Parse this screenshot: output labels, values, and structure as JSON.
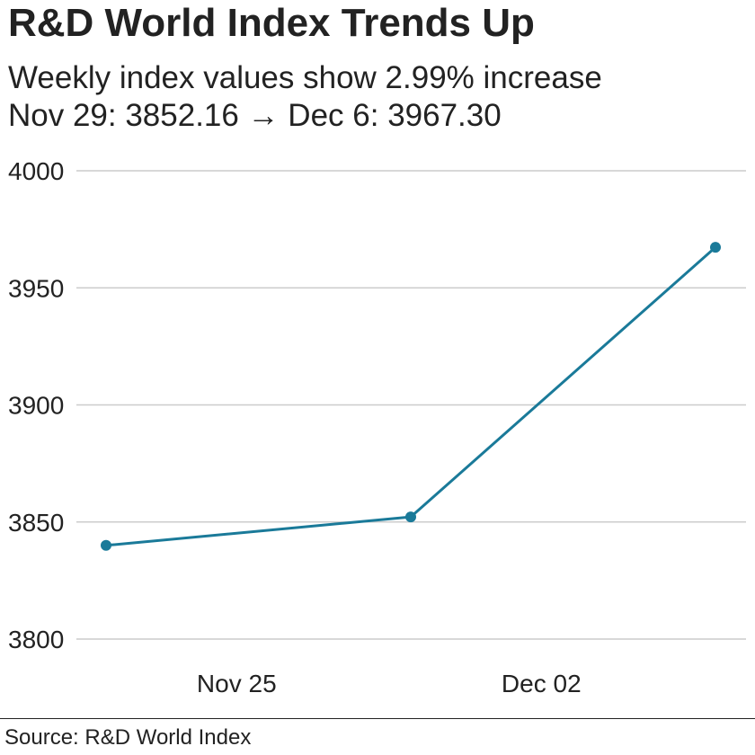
{
  "header": {
    "title": "R&D World Index Trends Up",
    "subtitle_line1": "Weekly index values show 2.99% increase",
    "subtitle_line2": "Nov 29: 3852.16 → Dec 6: 3967.30"
  },
  "footer": {
    "source": "Source: R&D World Index"
  },
  "chart_data": {
    "type": "line",
    "x": [
      "2024-11-22",
      "2024-11-29",
      "2024-12-06"
    ],
    "x_ticks": [
      "Nov 25",
      "Dec 02"
    ],
    "x_tick_positions": [
      "2024-11-25",
      "2024-12-02"
    ],
    "series": [
      {
        "values": [
          3840.0,
          3852.16,
          3967.3
        ],
        "color": "#1a7a99"
      }
    ],
    "y_ticks": [
      3800,
      3850,
      3900,
      3950,
      4000
    ],
    "ylim": [
      3800,
      4000
    ],
    "grid": true,
    "markers": true
  }
}
